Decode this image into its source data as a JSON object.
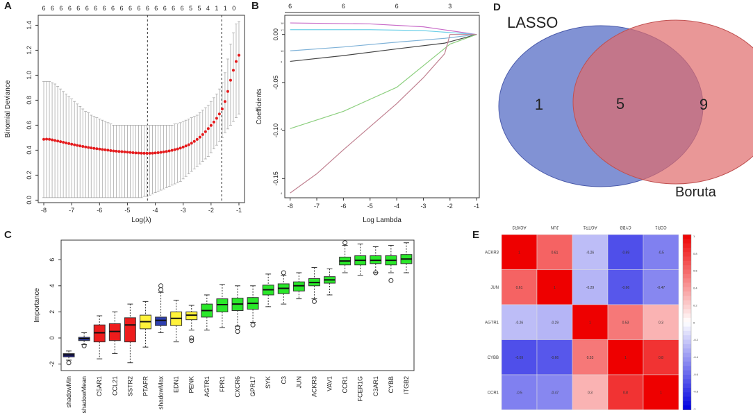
{
  "panels": {
    "a": "A",
    "b": "B",
    "c": "C",
    "d": "D",
    "e": "E"
  },
  "chart_data": [
    {
      "id": "A",
      "type": "scatter",
      "title": "",
      "xlabel": "Log(λ)",
      "ylabel": "Binomial Deviance",
      "xlim": [
        -8.2,
        -0.8
      ],
      "ylim": [
        -0.02,
        1.48
      ],
      "xticks": [
        -8,
        -7,
        -6,
        -5,
        -4,
        -3,
        -2,
        -1
      ],
      "yticks": [
        0.0,
        0.2,
        0.4,
        0.6,
        0.8,
        1.0,
        1.2,
        1.4
      ],
      "ytick_labels": [
        "0.0",
        "0.2",
        "0.4",
        "0.6",
        "0.8",
        "1.0",
        "1.2",
        "1.4"
      ],
      "top_labels": [
        "6",
        "6",
        "6",
        "6",
        "6",
        "6",
        "6",
        "6",
        "6",
        "6",
        "6",
        "6",
        "6",
        "6",
        "6",
        "6",
        "6",
        "5",
        "5",
        "4",
        "1",
        "1",
        "0"
      ],
      "top_label_x": [
        -8.0,
        -7.69,
        -7.38,
        -7.07,
        -6.76,
        -6.45,
        -6.14,
        -5.83,
        -5.52,
        -5.21,
        -4.9,
        -4.59,
        -4.28,
        -3.97,
        -3.66,
        -3.35,
        -3.04,
        -2.73,
        -2.42,
        -2.11,
        -1.8,
        -1.49,
        -1.18
      ],
      "vlines": [
        -4.28,
        -1.62
      ],
      "points_x": [
        -8.0,
        -7.9,
        -7.8,
        -7.7,
        -7.6,
        -7.5,
        -7.4,
        -7.3,
        -7.2,
        -7.1,
        -7.0,
        -6.9,
        -6.8,
        -6.7,
        -6.6,
        -6.5,
        -6.4,
        -6.3,
        -6.2,
        -6.1,
        -6.0,
        -5.9,
        -5.8,
        -5.7,
        -5.6,
        -5.5,
        -5.4,
        -5.3,
        -5.2,
        -5.1,
        -5.0,
        -4.9,
        -4.8,
        -4.7,
        -4.6,
        -4.5,
        -4.4,
        -4.3,
        -4.2,
        -4.1,
        -4.0,
        -3.9,
        -3.8,
        -3.7,
        -3.6,
        -3.5,
        -3.4,
        -3.3,
        -3.2,
        -3.1,
        -3.0,
        -2.9,
        -2.8,
        -2.7,
        -2.6,
        -2.5,
        -2.4,
        -2.3,
        -2.2,
        -2.1,
        -2.0,
        -1.9,
        -1.8,
        -1.7,
        -1.6,
        -1.5,
        -1.4,
        -1.3,
        -1.2,
        -1.1,
        -1.0
      ],
      "points_y": [
        0.487,
        0.488,
        0.487,
        0.483,
        0.478,
        0.473,
        0.468,
        0.463,
        0.458,
        0.453,
        0.448,
        0.443,
        0.438,
        0.434,
        0.43,
        0.426,
        0.422,
        0.418,
        0.415,
        0.412,
        0.409,
        0.406,
        0.403,
        0.4,
        0.397,
        0.394,
        0.392,
        0.39,
        0.388,
        0.386,
        0.384,
        0.382,
        0.38,
        0.378,
        0.377,
        0.376,
        0.375,
        0.375,
        0.375,
        0.376,
        0.378,
        0.38,
        0.383,
        0.386,
        0.39,
        0.394,
        0.399,
        0.404,
        0.41,
        0.417,
        0.425,
        0.434,
        0.444,
        0.456,
        0.47,
        0.486,
        0.504,
        0.525,
        0.548,
        0.573,
        0.598,
        0.625,
        0.655,
        0.69,
        0.73,
        0.79,
        0.87,
        0.96,
        1.04,
        1.11,
        1.16
      ],
      "err_lo": [
        0.02,
        0.02,
        0.02,
        0.02,
        0.02,
        0.02,
        0.02,
        0.02,
        0.02,
        0.02,
        0.02,
        0.02,
        0.02,
        0.02,
        0.02,
        0.02,
        0.02,
        0.02,
        0.02,
        0.02,
        0.02,
        0.02,
        0.02,
        0.02,
        0.02,
        0.02,
        0.02,
        0.02,
        0.02,
        0.02,
        0.02,
        0.02,
        0.02,
        0.02,
        0.02,
        0.02,
        0.03,
        0.03,
        0.04,
        0.05,
        0.06,
        0.07,
        0.08,
        0.09,
        0.1,
        0.11,
        0.12,
        0.13,
        0.14,
        0.15,
        0.17,
        0.19,
        0.21,
        0.23,
        0.25,
        0.27,
        0.29,
        0.31,
        0.33,
        0.35,
        0.38,
        0.41,
        0.44,
        0.47,
        0.5,
        0.54,
        0.57,
        0.6,
        0.63,
        0.66,
        0.69
      ],
      "err_hi": [
        0.95,
        0.95,
        0.95,
        0.94,
        0.93,
        0.91,
        0.89,
        0.87,
        0.85,
        0.83,
        0.81,
        0.79,
        0.77,
        0.75,
        0.73,
        0.71,
        0.7,
        0.68,
        0.67,
        0.66,
        0.65,
        0.64,
        0.63,
        0.62,
        0.61,
        0.6,
        0.6,
        0.6,
        0.6,
        0.6,
        0.6,
        0.6,
        0.6,
        0.6,
        0.6,
        0.6,
        0.6,
        0.6,
        0.6,
        0.6,
        0.6,
        0.6,
        0.6,
        0.6,
        0.6,
        0.6,
        0.6,
        0.61,
        0.61,
        0.62,
        0.63,
        0.64,
        0.65,
        0.66,
        0.67,
        0.68,
        0.7,
        0.72,
        0.74,
        0.76,
        0.79,
        0.82,
        0.85,
        0.89,
        0.94,
        1.02,
        1.13,
        1.25,
        1.34,
        1.41,
        1.43
      ],
      "point_color": "#e41a1c",
      "errbar_color": "#a8a8a8"
    },
    {
      "id": "B",
      "type": "line",
      "xlabel": "Log Lambda",
      "ylabel": "Coefficients",
      "xlim": [
        -8.2,
        -0.9
      ],
      "ylim": [
        -0.17,
        0.02
      ],
      "xticks": [
        -8,
        -7,
        -6,
        -5,
        -4,
        -3,
        -2,
        -1
      ],
      "yticks": [
        0.0,
        -0.05,
        -0.1,
        -0.15
      ],
      "ytick_labels": [
        "0.00",
        "-0.05",
        "-0.10",
        "-0.15"
      ],
      "top_labels": [
        "6",
        "6",
        "6",
        "3"
      ],
      "top_label_x": [
        -8.0,
        -6.0,
        -4.0,
        -2.0
      ],
      "line_end_labels": [
        "18",
        "17",
        "10",
        "3",
        "4",
        "4"
      ],
      "series": [
        {
          "name": "magenta",
          "color": "#c86bc8",
          "x": [
            -8,
            -5,
            -3,
            -2,
            -1
          ],
          "y": [
            0.012,
            0.011,
            0.008,
            0.004,
            0.0
          ]
        },
        {
          "name": "cyan",
          "color": "#6fd0e8",
          "x": [
            -8,
            -5,
            -3,
            -1
          ],
          "y": [
            0.005,
            0.005,
            0.004,
            0.0
          ]
        },
        {
          "name": "steelblue",
          "color": "#7fb2d8",
          "x": [
            -8,
            -6,
            -4,
            -2.2,
            -1
          ],
          "y": [
            -0.017,
            -0.013,
            -0.008,
            -0.004,
            0.0
          ]
        },
        {
          "name": "black",
          "color": "#444444",
          "x": [
            -8,
            -6,
            -4,
            -2.2,
            -1
          ],
          "y": [
            -0.028,
            -0.022,
            -0.015,
            -0.009,
            0.0
          ]
        },
        {
          "name": "green",
          "color": "#8ccf7e",
          "x": [
            -8,
            -6,
            -4,
            -2,
            -1
          ],
          "y": [
            -0.098,
            -0.08,
            -0.055,
            -0.01,
            0.0
          ]
        },
        {
          "name": "maroon",
          "color": "#c08090",
          "x": [
            -8,
            -7,
            -6,
            -5,
            -4,
            -3,
            -2.2,
            -2,
            -1
          ],
          "y": [
            -0.165,
            -0.145,
            -0.12,
            -0.096,
            -0.072,
            -0.045,
            -0.02,
            0.0,
            0.0
          ]
        }
      ]
    },
    {
      "id": "C",
      "type": "bar",
      "subtype": "boxplot",
      "ylabel": "Importance",
      "ylim": [
        -2.5,
        7.5
      ],
      "yticks": [
        -2,
        0,
        2,
        4,
        6
      ],
      "ytick_labels": [
        "-2",
        "0",
        "2",
        "4",
        "6"
      ],
      "categories": [
        "shadowMin",
        "shadowMean",
        "C5AR1",
        "CCL21",
        "SSTR2",
        "PTAFR",
        "shadowMax",
        "EDN1",
        "PENK",
        "AGTR1",
        "FPR1",
        "CXCR6",
        "GPR17",
        "SYK",
        "C3",
        "JUN",
        "ACKR3",
        "VAV1",
        "CCR1",
        "FCER1G",
        "C3AR1",
        "CYBB",
        "ITGB2"
      ],
      "colors": [
        "#1c1c8c",
        "#2d3fb0",
        "#ee1c1c",
        "#ee1c1c",
        "#ee1c1c",
        "#fff23a",
        "#2d3fb0",
        "#fff23a",
        "#fff23a",
        "#2ae82a",
        "#2ae82a",
        "#2ae82a",
        "#2ae82a",
        "#2ae82a",
        "#2ae82a",
        "#2ae82a",
        "#2ae82a",
        "#2ae82a",
        "#2ae82a",
        "#2ae82a",
        "#2ae82a",
        "#2ae82a",
        "#2ae82a"
      ],
      "q1": [
        -1.45,
        -0.2,
        -0.3,
        -0.2,
        -0.3,
        0.7,
        0.95,
        0.95,
        1.4,
        1.6,
        2.0,
        2.1,
        2.2,
        3.3,
        3.4,
        3.6,
        4.0,
        4.2,
        5.6,
        5.6,
        5.7,
        5.6,
        5.7
      ],
      "median": [
        -1.3,
        -0.05,
        0.4,
        0.5,
        1.0,
        1.25,
        1.35,
        1.5,
        1.75,
        2.1,
        2.55,
        2.6,
        2.65,
        3.7,
        3.8,
        4.0,
        4.25,
        4.45,
        5.9,
        5.95,
        5.95,
        5.95,
        6.05
      ],
      "q3": [
        -1.2,
        0.05,
        1.0,
        1.1,
        1.55,
        1.75,
        1.6,
        2.0,
        2.0,
        2.6,
        3.0,
        3.05,
        3.1,
        4.05,
        4.15,
        4.3,
        4.55,
        4.7,
        6.2,
        6.3,
        6.3,
        6.3,
        6.4
      ],
      "wlo": [
        -1.7,
        -0.5,
        -1.6,
        -1.2,
        -1.9,
        -0.7,
        0.4,
        -0.3,
        0.6,
        0.6,
        0.8,
        0.9,
        1.2,
        2.4,
        2.6,
        3.0,
        3.0,
        3.3,
        5.0,
        4.8,
        5.0,
        5.0,
        5.0
      ],
      "whi": [
        -1.0,
        0.4,
        1.7,
        2.0,
        2.6,
        2.8,
        3.5,
        2.9,
        2.5,
        3.3,
        4.1,
        4.0,
        4.0,
        4.9,
        4.8,
        5.0,
        5.4,
        5.3,
        7.1,
        7.2,
        7.0,
        7.1,
        7.3
      ],
      "outliers": [
        [
          -1.9
        ],
        [
          -0.6
        ],
        [],
        [],
        [],
        [],
        [
          4.0,
          3.7
        ],
        [],
        [
          0.0,
          -0.2
        ],
        [],
        [],
        [
          0.8,
          0.5
        ],
        [
          1.0
        ],
        [],
        [
          5.0
        ],
        [],
        [
          2.8
        ],
        [],
        [
          7.3
        ],
        [],
        [
          5.0
        ],
        [
          4.4
        ],
        []
      ]
    },
    {
      "id": "D",
      "type": "other",
      "subtype": "venn",
      "sets": [
        {
          "name": "LASSO",
          "only": "1",
          "color": "#6b7fcc"
        },
        {
          "name": "Boruta",
          "only": "9",
          "color": "#e06b6b"
        }
      ],
      "intersection": "5"
    },
    {
      "id": "E",
      "type": "heatmap",
      "row_labels": [
        "ACKR3",
        "JUN",
        "AGTR1",
        "CYBB",
        "CCR1"
      ],
      "col_labels": [
        "ACKR3",
        "JUN",
        "AGTR1",
        "CYBB",
        "CCR1"
      ],
      "values": [
        [
          1.0,
          0.61,
          -0.26,
          -0.69,
          -0.5
        ],
        [
          0.61,
          1.0,
          -0.29,
          -0.66,
          -0.47
        ],
        [
          -0.26,
          -0.29,
          1.0,
          0.53,
          0.3
        ],
        [
          -0.69,
          -0.66,
          0.53,
          1.0,
          0.8
        ],
        [
          -0.5,
          -0.47,
          0.3,
          0.8,
          1.0
        ]
      ],
      "cell_text": [
        [
          "1",
          "0.61",
          "-0.26",
          "-0.69",
          "-0.5"
        ],
        [
          "0.61",
          "1",
          "-0.29",
          "-0.66",
          "-0.47"
        ],
        [
          "-0.26",
          "-0.29",
          "1",
          "0.53",
          "0.3"
        ],
        [
          "-0.69",
          "-0.66",
          "0.53",
          "1",
          "0.8"
        ],
        [
          "-0.5",
          "-0.47",
          "0.3",
          "0.8",
          "1"
        ]
      ],
      "colorbar_ticks": [
        1,
        0.8,
        0.6,
        0.4,
        0.2,
        0,
        -0.2,
        -0.4,
        -0.6,
        -0.8,
        -1
      ],
      "colorbar_labels": [
        "1",
        "0.8",
        "0.6",
        "0.4",
        "0.2",
        "0",
        "-0.2",
        "-0.4",
        "-0.6",
        "-0.8",
        "-1"
      ],
      "colors": {
        "neg": "#0000e0",
        "mid": "#ffffff",
        "pos": "#ee0000"
      }
    }
  ]
}
